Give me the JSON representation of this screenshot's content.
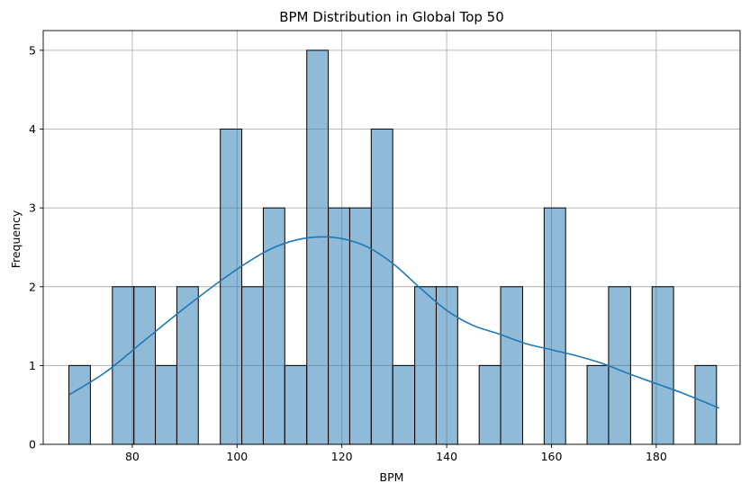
{
  "chart_data": {
    "type": "bar",
    "title": "BPM Distribution in Global Top 50",
    "xlabel": "BPM",
    "ylabel": "Frequency",
    "xlim": [
      63,
      196
    ],
    "ylim": [
      0,
      5.25
    ],
    "xticks": [
      80,
      100,
      120,
      140,
      160,
      180
    ],
    "yticks": [
      0,
      1,
      2,
      3,
      4,
      5
    ],
    "grid": true,
    "bin_edges": [
      67.9,
      72.0,
      76.2,
      80.3,
      84.4,
      88.5,
      92.6,
      96.8,
      100.9,
      105.0,
      109.1,
      113.3,
      117.4,
      121.5,
      125.6,
      129.7,
      133.9,
      138.0,
      142.1,
      146.2,
      150.3,
      154.5,
      158.6,
      162.7,
      166.8,
      170.9,
      175.1,
      179.2,
      183.3,
      187.4,
      191.5
    ],
    "counts": [
      1,
      0,
      2,
      2,
      1,
      2,
      0,
      4,
      2,
      3,
      1,
      5,
      3,
      3,
      4,
      1,
      2,
      2,
      0,
      1,
      2,
      0,
      3,
      0,
      1,
      2,
      0,
      2,
      0,
      1
    ],
    "kde": {
      "x": [
        68,
        75,
        82,
        90,
        98,
        105,
        110,
        115,
        120,
        125,
        130,
        135,
        140,
        145,
        150,
        155,
        160,
        165,
        170,
        175,
        180,
        185,
        192
      ],
      "y": [
        0.63,
        0.92,
        1.3,
        1.73,
        2.13,
        2.43,
        2.57,
        2.63,
        2.61,
        2.5,
        2.28,
        1.98,
        1.7,
        1.51,
        1.4,
        1.28,
        1.2,
        1.12,
        1.02,
        0.89,
        0.77,
        0.65,
        0.46
      ]
    }
  }
}
